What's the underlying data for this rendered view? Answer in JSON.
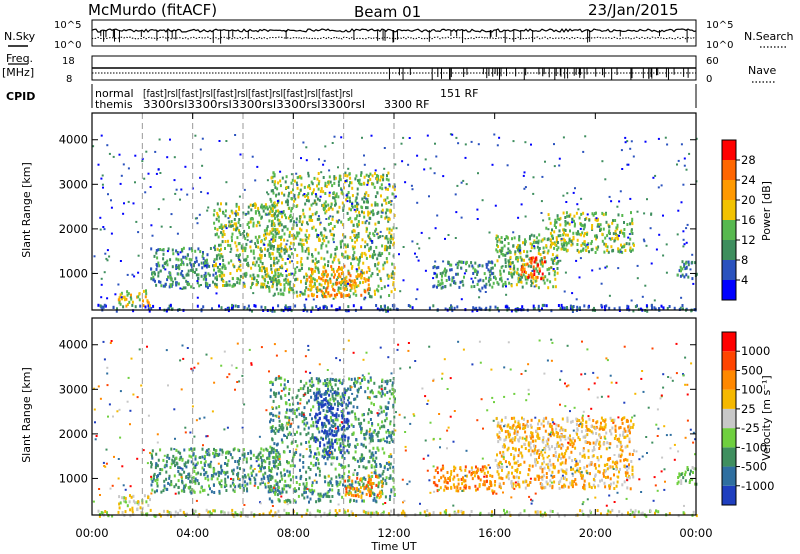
{
  "header": {
    "radar": "McMurdo (fitACF)",
    "beam": "Beam 01",
    "date": "23/Jan/2015"
  },
  "top_panels": {
    "nsky_label": "N.Sky",
    "nsky_ticks": [
      "10^5",
      "10^0"
    ],
    "nsearch_label": "N.Search",
    "nsearch_ticks": [
      "10^5",
      "10^0"
    ],
    "freq_label": "Freq.",
    "freq_unit": "[MHz]",
    "freq_ticks": [
      "18",
      "8"
    ],
    "nave_label": "Nave",
    "nave_ticks": [
      "60",
      "0"
    ],
    "cpid_label": "CPID",
    "cpid_rows": [
      [
        "normal",
        "themis"
      ],
      [
        "(fast)",
        "3300"
      ],
      [
        "151 RF",
        "3300"
      ]
    ],
    "cpid_overlap_text": "[fast]rsl[fast]rsl[fast]rsl[fast]rsl[fast]rsl[fast]rsl",
    "cpid_overlap_text2": "3300rsl3300rsl3300rsl3300rsl3300rsl",
    "cpid_last_top": "151 RF",
    "cpid_last_bottom": "3300 RF"
  },
  "chart_data": [
    {
      "type": "heatmap",
      "name": "power",
      "ylabel": "Slant Range [km]",
      "yticks": [
        "1000",
        "2000",
        "3000",
        "4000"
      ],
      "ylim": [
        180,
        4600
      ],
      "xlim": [
        0,
        24
      ],
      "colorbar": {
        "label": "Power [dB]",
        "ticks": [
          "4",
          "8",
          "12",
          "16",
          "20",
          "24",
          "28"
        ],
        "colors": [
          "#0000ff",
          "#2a52be",
          "#3e8e5e",
          "#57b84f",
          "#f2c200",
          "#ff9900",
          "#ff6600",
          "#ff0000"
        ]
      },
      "echo_regions": [
        {
          "t0": 0.2,
          "t1": 24.0,
          "r0": 180,
          "r1": 320,
          "level": 1
        },
        {
          "t0": 1.0,
          "t1": 2.3,
          "r0": 300,
          "r1": 650,
          "level": 4
        },
        {
          "t0": 2.3,
          "t1": 5.0,
          "r0": 700,
          "r1": 1600,
          "level": 2
        },
        {
          "t0": 4.8,
          "t1": 7.5,
          "r0": 700,
          "r1": 2600,
          "level": 3
        },
        {
          "t0": 7.0,
          "t1": 12.0,
          "r0": 500,
          "r1": 3300,
          "level": 3
        },
        {
          "t0": 8.5,
          "t1": 11.0,
          "r0": 500,
          "r1": 1200,
          "level": 5
        },
        {
          "t0": 13.5,
          "t1": 16.0,
          "r0": 700,
          "r1": 1300,
          "level": 2
        },
        {
          "t0": 16.0,
          "t1": 18.5,
          "r0": 700,
          "r1": 1900,
          "level": 3
        },
        {
          "t0": 17.0,
          "t1": 18.0,
          "r0": 900,
          "r1": 1400,
          "level": 6
        },
        {
          "t0": 18.0,
          "t1": 21.5,
          "r0": 1500,
          "r1": 2400,
          "level": 3
        },
        {
          "t0": 23.2,
          "t1": 24.0,
          "r0": 900,
          "r1": 1300,
          "level": 2
        }
      ]
    },
    {
      "type": "heatmap",
      "name": "velocity",
      "ylabel": "Slant Range [km]",
      "yticks": [
        "1000",
        "2000",
        "3000",
        "4000"
      ],
      "ylim": [
        180,
        4600
      ],
      "xlim": [
        0,
        24
      ],
      "xticks": [
        "00:00",
        "04:00",
        "08:00",
        "12:00",
        "16:00",
        "20:00",
        "00:00"
      ],
      "xlabel": "Time UT",
      "colorbar": {
        "label": "Velocity [m s⁻¹]",
        "ticks": [
          "1000",
          "500",
          "100",
          "25",
          "-25",
          "-100",
          "-500",
          "-1000"
        ],
        "colors": [
          "#1f3fbf",
          "#2f6fa0",
          "#3f8f5f",
          "#6fcf3f",
          "#c8c8c8",
          "#f5b800",
          "#ff8800",
          "#ff4400",
          "#ff0000"
        ]
      },
      "echo_regions": [
        {
          "t0": 0.2,
          "t1": 24.0,
          "r0": 180,
          "r1": 320,
          "level": 4
        },
        {
          "t0": 1.0,
          "t1": 2.3,
          "r0": 300,
          "r1": 650,
          "level": 4
        },
        {
          "t0": 2.3,
          "t1": 7.5,
          "r0": 700,
          "r1": 1700,
          "level": 2
        },
        {
          "t0": 7.0,
          "t1": 12.0,
          "r0": 500,
          "r1": 3300,
          "level": 2
        },
        {
          "t0": 8.8,
          "t1": 10.2,
          "r0": 1500,
          "r1": 3000,
          "level": 0
        },
        {
          "t0": 10.0,
          "t1": 11.5,
          "r0": 600,
          "r1": 1100,
          "level": 6
        },
        {
          "t0": 13.5,
          "t1": 16.0,
          "r0": 700,
          "r1": 1300,
          "level": 6
        },
        {
          "t0": 16.0,
          "t1": 21.5,
          "r0": 800,
          "r1": 2400,
          "level": 5
        },
        {
          "t0": 23.2,
          "t1": 24.0,
          "r0": 900,
          "r1": 1300,
          "level": 3
        }
      ]
    }
  ],
  "dashed_times": [
    2,
    4,
    6,
    8,
    10,
    12
  ]
}
